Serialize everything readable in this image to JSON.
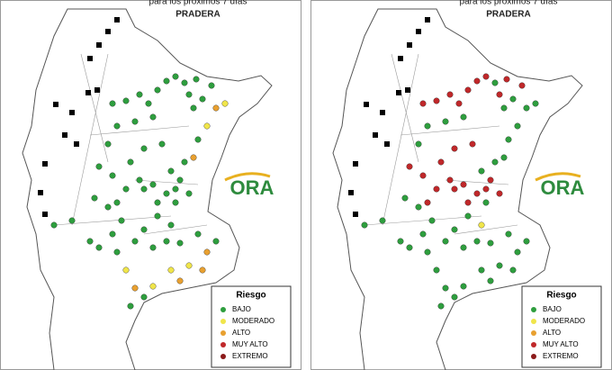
{
  "panels": [
    {
      "header": "para los próximos 7 días",
      "title": "PRADERA",
      "logo": "ORA",
      "legend_title": "Riesgo",
      "legend": [
        "BAJO",
        "MODERADO",
        "ALTO",
        "MUY ALTO",
        "EXTREMO"
      ]
    },
    {
      "header": "para los próximos 7 días",
      "title": "PRADERA",
      "logo": "ORA",
      "legend_title": "Riesgo",
      "legend": [
        "BAJO",
        "MODERADO",
        "ALTO",
        "MUY ALTO",
        "EXTREMO"
      ]
    }
  ]
}
